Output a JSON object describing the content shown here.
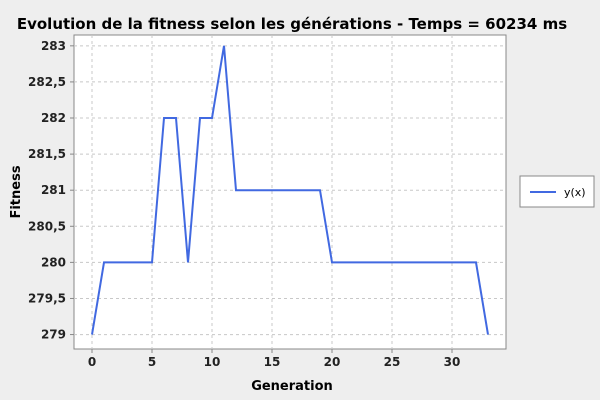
{
  "chart_data": {
    "type": "line",
    "title": "Evolution de la fitness selon les générations - Temps = 60234 ms",
    "xlabel": "Generation",
    "ylabel": "Fitness",
    "xlim": [
      -1.5,
      34.5
    ],
    "ylim": [
      278.8,
      283.15
    ],
    "xticks": [
      0,
      5,
      10,
      15,
      20,
      25,
      30
    ],
    "xtick_labels": [
      "0",
      "5",
      "10",
      "15",
      "20",
      "25",
      "30"
    ],
    "yticks": [
      279,
      279.5,
      280,
      280.5,
      281,
      281.5,
      282,
      282.5,
      283
    ],
    "ytick_labels": [
      "279",
      "279,5",
      "280",
      "280,5",
      "281",
      "281,5",
      "282",
      "282,5",
      "283"
    ],
    "grid": true,
    "legend_position": "right",
    "series": [
      {
        "name": "y(x)",
        "color": "#4169e1",
        "x": [
          0,
          1,
          2,
          3,
          4,
          5,
          6,
          7,
          8,
          9,
          10,
          11,
          12,
          13,
          14,
          15,
          16,
          17,
          18,
          19,
          20,
          21,
          22,
          23,
          24,
          25,
          26,
          27,
          28,
          29,
          30,
          31,
          32,
          33
        ],
        "y": [
          279,
          280,
          280,
          280,
          280,
          280,
          282,
          282,
          280,
          282,
          282,
          283,
          281,
          281,
          281,
          281,
          281,
          281,
          281,
          281,
          280,
          280,
          280,
          280,
          280,
          280,
          280,
          280,
          280,
          280,
          280,
          280,
          280,
          279
        ]
      }
    ]
  }
}
